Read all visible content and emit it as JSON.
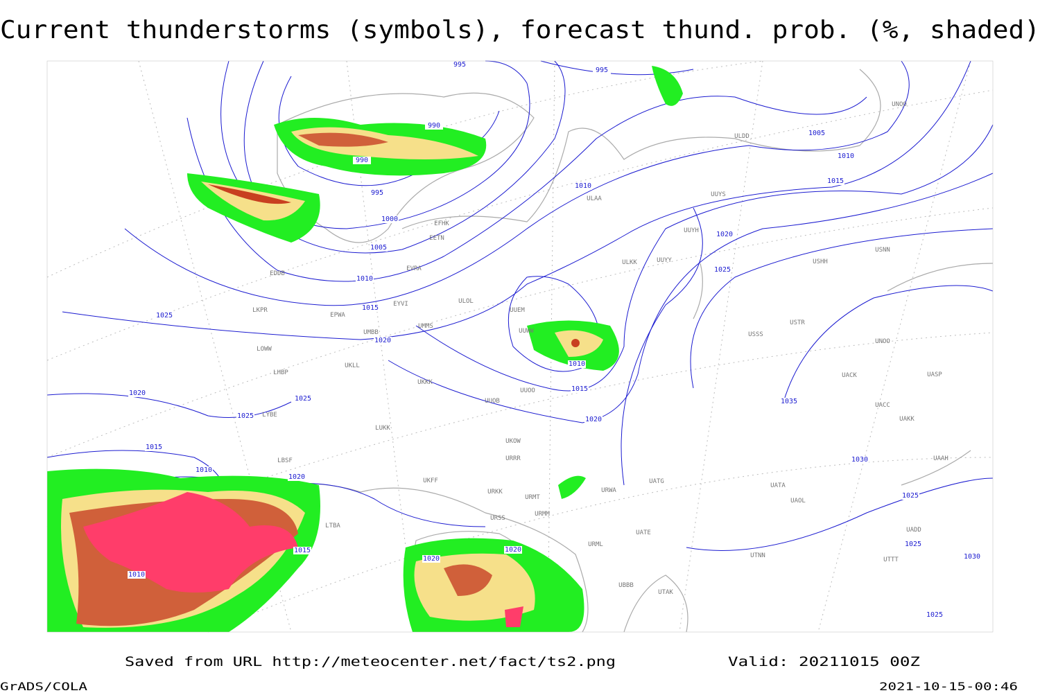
{
  "title": "Current thunderstorms (symbols), forecast thund. prob. (%, shaded)",
  "footer": {
    "saved": "Saved from URL http://meteocenter.net/fact/ts2.png",
    "valid": "Valid: 20211015 00Z",
    "software": "GrADS/COLA",
    "timestamp": "2021-10-15-00:46"
  },
  "isobar_labels": [
    "995",
    "995",
    "990",
    "990",
    "995",
    "1000",
    "1005",
    "1010",
    "1015",
    "1020",
    "1025",
    "1010",
    "1005",
    "1010",
    "1015",
    "1020",
    "1025",
    "1010",
    "1015",
    "1020",
    "1035",
    "1030",
    "1025",
    "1025",
    "1030",
    "1025",
    "1020",
    "1025",
    "1025",
    "1015",
    "1010",
    "1020",
    "1015",
    "1010",
    "1020",
    "1020"
  ],
  "station_labels": [
    "ULDD",
    "UUYS",
    "ULAA",
    "UUYH",
    "ULKK",
    "UUYY",
    "USHH",
    "UNOO",
    "USNN",
    "USSS",
    "USTR",
    "UNOO",
    "UACC",
    "UAKK",
    "UASP",
    "UACK",
    "UAAH",
    "UATA",
    "UAOL",
    "UADD",
    "UTTT",
    "UTNN",
    "UTAK",
    "UATG",
    "UATE",
    "URWA",
    "URML",
    "UBBB",
    "URMM",
    "URMT",
    "URSS",
    "URKK",
    "UKFF",
    "URRR",
    "UKOW",
    "UUOB",
    "UUOO",
    "UKKK",
    "UKLL",
    "ULOL",
    "UMMS",
    "EPWA",
    "EYVI",
    "UMBB",
    "EVRA",
    "EETN",
    "EFHK",
    "LKPR",
    "LOWW",
    "LHBP",
    "LYBE",
    "LBSF",
    "LTBA",
    "UUEM",
    "UUWW",
    "LUKK",
    "EDDB"
  ]
}
